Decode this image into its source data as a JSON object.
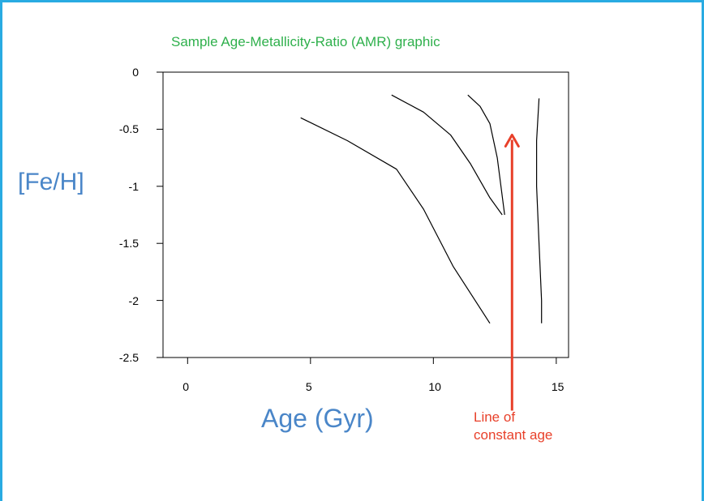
{
  "chart_data": {
    "type": "line",
    "title": "Sample Age-Metallicity-Ratio (AMR) graphic",
    "xlabel": "Age (Gyr)",
    "ylabel": "[Fe/H]",
    "xlim": [
      -1,
      15.5
    ],
    "ylim": [
      -2.5,
      0
    ],
    "x_ticks": [
      0,
      5,
      10,
      15
    ],
    "x_tick_labels": [
      "0",
      "5",
      "10",
      "15"
    ],
    "y_ticks": [
      0,
      -0.5,
      -1,
      -1.5,
      -2,
      -2.5
    ],
    "y_tick_labels": [
      "0",
      "-0.5",
      "-1",
      "-1.5",
      "-2",
      "-2.5"
    ],
    "grid": false,
    "series": [
      {
        "points": [
          [
            4.6,
            -0.4
          ],
          [
            6.5,
            -0.6
          ],
          [
            8.5,
            -0.85
          ],
          [
            9.6,
            -1.2
          ],
          [
            10.8,
            -1.7
          ],
          [
            12.3,
            -2.2
          ]
        ]
      },
      {
        "points": [
          [
            8.3,
            -0.2
          ],
          [
            9.6,
            -0.35
          ],
          [
            10.7,
            -0.55
          ],
          [
            11.5,
            -0.8
          ],
          [
            12.3,
            -1.1
          ],
          [
            12.8,
            -1.25
          ]
        ]
      },
      {
        "points": [
          [
            11.4,
            -0.2
          ],
          [
            11.9,
            -0.3
          ],
          [
            12.3,
            -0.45
          ],
          [
            12.6,
            -0.75
          ],
          [
            12.9,
            -1.25
          ]
        ]
      },
      {
        "points": [
          [
            14.3,
            -0.23
          ],
          [
            14.2,
            -0.6
          ],
          [
            14.2,
            -1.0
          ],
          [
            14.3,
            -1.5
          ],
          [
            14.4,
            -2.0
          ],
          [
            14.4,
            -2.2
          ]
        ]
      }
    ],
    "annotation": {
      "text_line1": "Line of",
      "text_line2": "constant age",
      "color": "#e8402a",
      "arrow_from": [
        13.2,
        -1.9
      ],
      "arrow_to": [
        13.2,
        -0.55
      ]
    },
    "colors": {
      "title": "#2fb04c",
      "axis_labels": "#4a86c8",
      "series": "#000000",
      "frame": "#29abe2"
    }
  }
}
